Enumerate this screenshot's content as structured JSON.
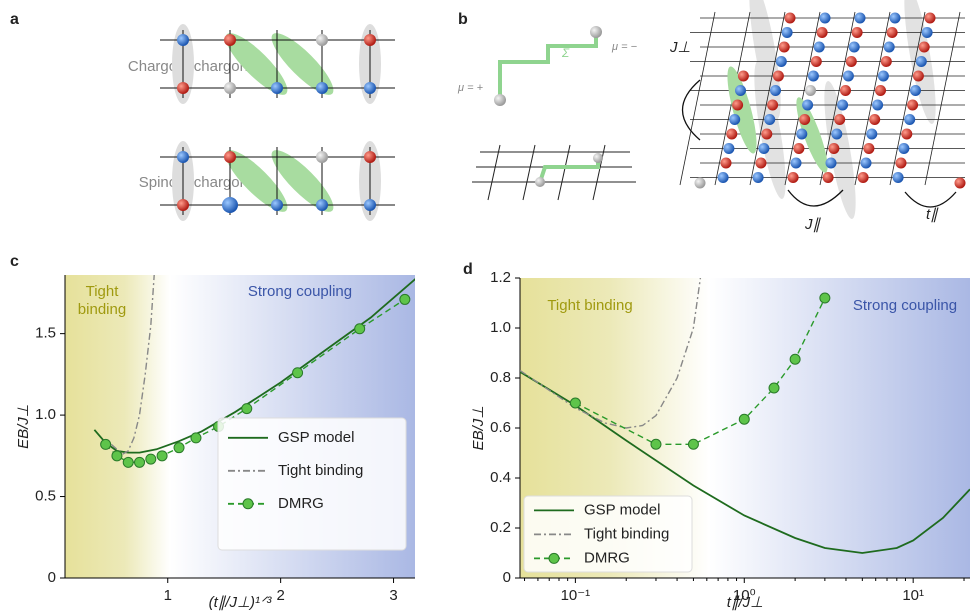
{
  "panels": {
    "a": {
      "label": "a",
      "rows": [
        "Chargon–chargon",
        "Spinon–chargon"
      ]
    },
    "b": {
      "label": "b",
      "mu_plus": "μ = +",
      "mu_minus": "μ = −",
      "sigma": "Σ",
      "j_perp": "J⊥",
      "j_par": "J∥",
      "t_par": "t∥"
    }
  },
  "chart_data": [
    {
      "type": "line",
      "panel": "c",
      "ylabel": "EB/J⊥",
      "xlabel": "(t∥/J⊥)¹ᐟ³",
      "annotations": [
        "Tight",
        "binding",
        "Strong coupling"
      ],
      "xlim": [
        0.09,
        3.19
      ],
      "xticks": [
        1,
        2,
        3
      ],
      "ylim": [
        0,
        1.86
      ],
      "yticks": [
        0,
        0.5,
        {
          "value": 1,
          "label": "1.0"
        },
        1.5
      ],
      "legend": "lower right",
      "series": [
        {
          "name": "GSP model",
          "color": "#1e6b1e",
          "style": "solid",
          "x": [
            0.35,
            0.45,
            0.55,
            0.65,
            0.75,
            0.9,
            1.1,
            1.3,
            1.6,
            2.0,
            2.4,
            2.8,
            3.2
          ],
          "values": [
            0.91,
            0.83,
            0.78,
            0.77,
            0.77,
            0.79,
            0.84,
            0.9,
            1.02,
            1.2,
            1.4,
            1.6,
            1.84
          ]
        },
        {
          "name": "Tight binding",
          "color": "#888888",
          "style": "dashdot",
          "x": [
            0.5,
            0.6,
            0.65,
            0.7,
            0.75,
            0.8,
            0.85,
            0.88
          ],
          "values": [
            0.82,
            0.76,
            0.78,
            0.86,
            1.0,
            1.25,
            1.55,
            1.86
          ]
        },
        {
          "name": "DMRG",
          "color": "#2a9a2a",
          "style": "dashed",
          "markers": true,
          "x": [
            0.45,
            0.55,
            0.65,
            0.75,
            0.85,
            0.95,
            1.1,
            1.25,
            1.45,
            1.7,
            2.15,
            2.7,
            3.1
          ],
          "values": [
            0.82,
            0.75,
            0.71,
            0.71,
            0.73,
            0.75,
            0.8,
            0.86,
            0.93,
            1.04,
            1.26,
            1.53,
            1.71
          ]
        }
      ]
    },
    {
      "type": "line",
      "panel": "d",
      "ylabel": "EB/J⊥",
      "xlabel": "t∥/J⊥",
      "xlog": true,
      "annotations": [
        "Tight binding",
        "Strong coupling"
      ],
      "xlim": [
        0.047,
        21.7
      ],
      "xticks": [
        {
          "value": 0.1,
          "label": "10⁻¹"
        },
        {
          "value": 1,
          "label": "10⁰"
        },
        {
          "value": 10,
          "label": "10¹"
        }
      ],
      "ylim": [
        0,
        1.2
      ],
      "yticks": [
        0,
        0.2,
        0.4,
        0.6,
        0.8,
        {
          "value": 1,
          "label": "1.0"
        },
        1.2
      ],
      "legend": "lower left",
      "series": [
        {
          "name": "GSP model",
          "color": "#1e6b1e",
          "style": "solid",
          "x": [
            0.047,
            0.1,
            0.2,
            0.3,
            0.5,
            1,
            2,
            3,
            5,
            8,
            10,
            15,
            21.7
          ],
          "values": [
            0.825,
            0.69,
            0.55,
            0.47,
            0.37,
            0.25,
            0.16,
            0.12,
            0.1,
            0.12,
            0.15,
            0.24,
            0.355
          ]
        },
        {
          "name": "Tight binding",
          "color": "#888888",
          "style": "dashdot",
          "x": [
            0.047,
            0.1,
            0.15,
            0.2,
            0.25,
            0.3,
            0.4,
            0.5,
            0.55
          ],
          "values": [
            0.83,
            0.68,
            0.62,
            0.6,
            0.61,
            0.65,
            0.8,
            1.0,
            1.2
          ]
        },
        {
          "name": "DMRG",
          "color": "#2a9a2a",
          "style": "dashed",
          "markers": true,
          "x": [
            0.1,
            0.3,
            0.5,
            1,
            1.5,
            2,
            3
          ],
          "values": [
            0.7,
            0.535,
            0.535,
            0.635,
            0.76,
            0.875,
            1.12
          ]
        }
      ]
    }
  ]
}
